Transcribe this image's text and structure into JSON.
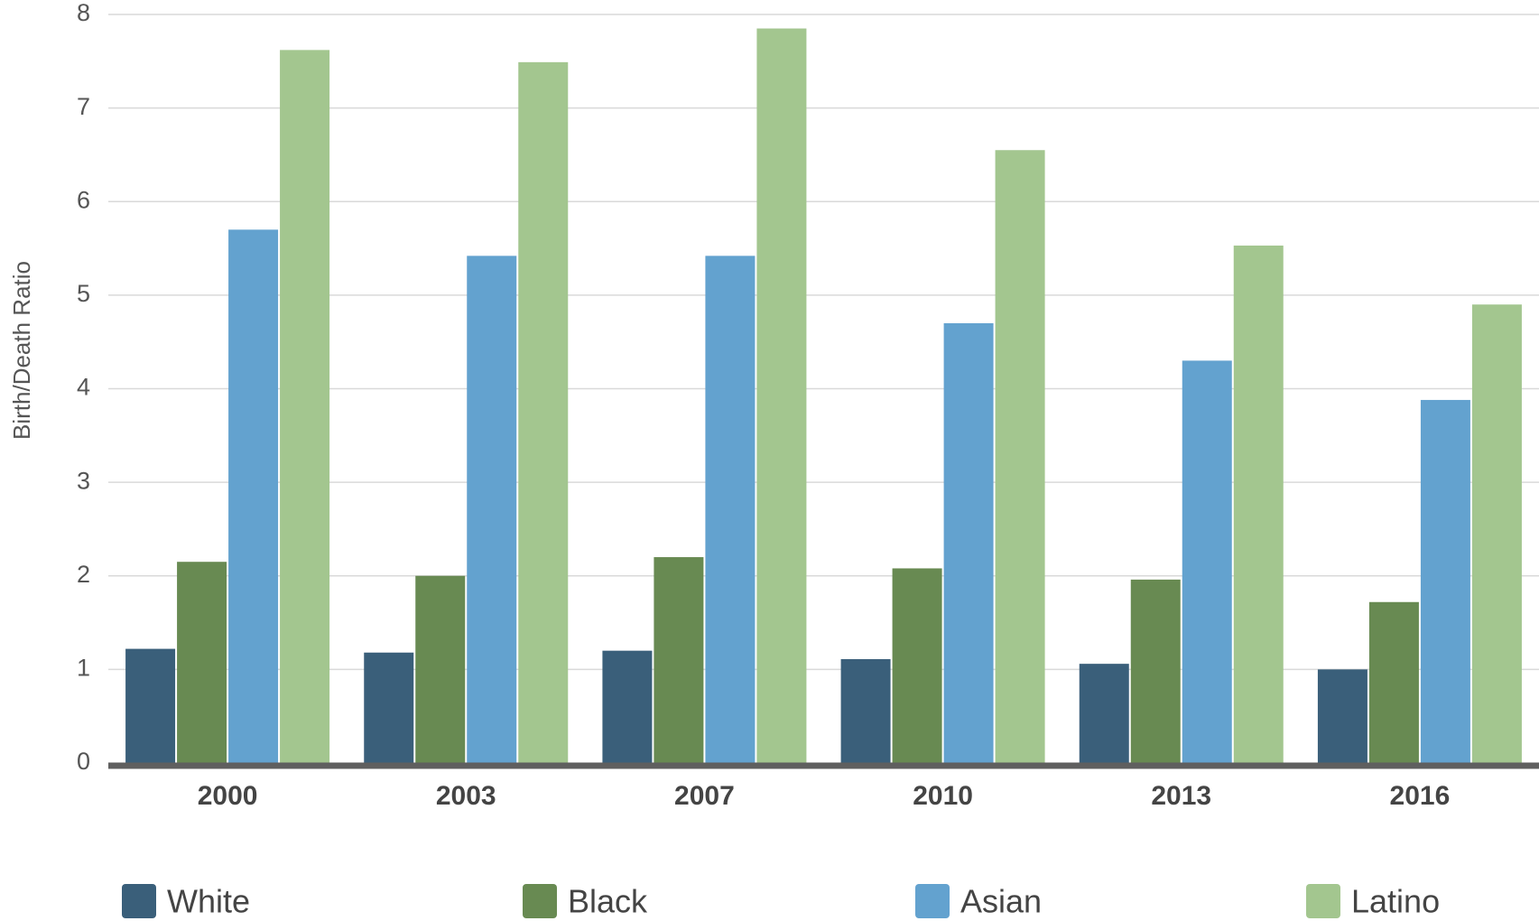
{
  "chart_data": {
    "type": "bar",
    "title": "",
    "xlabel": "",
    "ylabel": "Birth/Death Ratio",
    "ylim": [
      0,
      8
    ],
    "yticks": [
      "0",
      "1",
      "2",
      "3",
      "4",
      "5",
      "6",
      "7",
      "8"
    ],
    "categories": [
      "2000",
      "2003",
      "2007",
      "2010",
      "2013",
      "2016"
    ],
    "series": [
      {
        "name": "White",
        "color": "#3a5f7a",
        "values": [
          1.22,
          1.18,
          1.2,
          1.11,
          1.06,
          1.0
        ]
      },
      {
        "name": "Black",
        "color": "#688a52",
        "values": [
          2.15,
          2.0,
          2.2,
          2.08,
          1.96,
          1.72
        ]
      },
      {
        "name": "Asian",
        "color": "#63a2cf",
        "values": [
          5.7,
          5.42,
          5.42,
          4.7,
          4.3,
          3.88
        ]
      },
      {
        "name": "Latino",
        "color": "#a3c68f",
        "values": [
          7.62,
          7.49,
          7.85,
          6.55,
          5.53,
          4.9
        ]
      }
    ],
    "grid": true,
    "legend_position": "bottom"
  }
}
